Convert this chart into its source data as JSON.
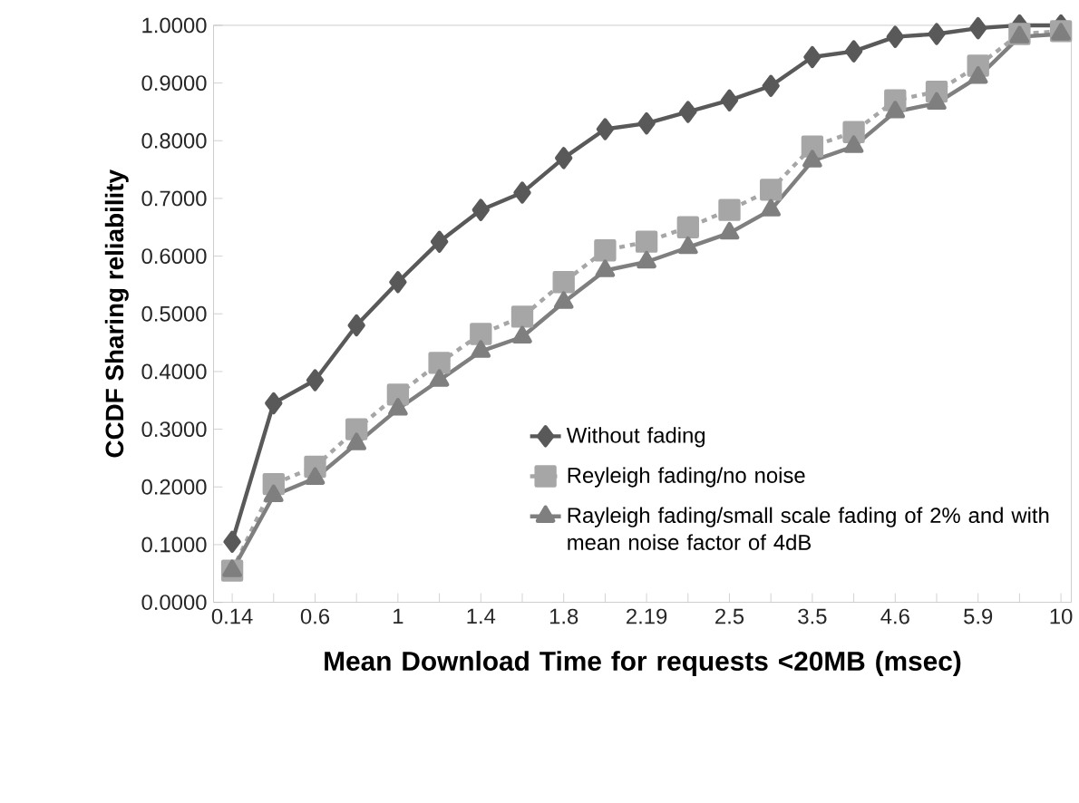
{
  "chart_data": {
    "type": "line",
    "xlabel": "Mean Download Time for requests <20MB (msec)",
    "ylabel": "CCDF Sharing reliability",
    "categories": [
      "0.14",
      null,
      "0.6",
      null,
      "1",
      null,
      "1.4",
      null,
      "1.8",
      null,
      "2.19",
      null,
      "2.5",
      null,
      "3.5",
      null,
      "4.6",
      null,
      "5.9",
      null,
      "10"
    ],
    "series": [
      {
        "name": "Without fading",
        "color": "#595959",
        "marker": "diamond",
        "line_style": "solid",
        "values": [
          0.105,
          0.345,
          0.385,
          0.48,
          0.555,
          0.625,
          0.68,
          0.71,
          0.77,
          0.82,
          0.83,
          0.85,
          0.87,
          0.895,
          0.945,
          0.955,
          0.98,
          0.985,
          0.995,
          1.0,
          1.0
        ]
      },
      {
        "name": "Reyleigh fading/no noise",
        "color": "#a6a6a6",
        "marker": "square",
        "line_style": "dashed",
        "values": [
          0.055,
          0.205,
          0.235,
          0.3,
          0.36,
          0.415,
          0.465,
          0.495,
          0.555,
          0.61,
          0.625,
          0.65,
          0.68,
          0.715,
          0.79,
          0.815,
          0.87,
          0.885,
          0.93,
          0.985,
          0.99
        ]
      },
      {
        "name": "Rayleigh fading/small scale fading of 2% and with mean noise factor of 4dB",
        "color": "#7f7f7f",
        "marker": "triangle",
        "line_style": "solid",
        "values": [
          0.055,
          0.185,
          0.215,
          0.275,
          0.335,
          0.385,
          0.435,
          0.46,
          0.52,
          0.575,
          0.59,
          0.615,
          0.64,
          0.68,
          0.765,
          0.79,
          0.85,
          0.865,
          0.91,
          0.98,
          0.985
        ]
      }
    ],
    "ylim": [
      0,
      1
    ],
    "yticks": [
      {
        "value": 0,
        "label": "0.0000"
      },
      {
        "value": 0.1,
        "label": "0.1000"
      },
      {
        "value": 0.2,
        "label": "0.2000"
      },
      {
        "value": 0.3,
        "label": "0.3000"
      },
      {
        "value": 0.4,
        "label": "0.4000"
      },
      {
        "value": 0.5,
        "label": "0.5000"
      },
      {
        "value": 0.6,
        "label": "0.6000"
      },
      {
        "value": 0.7,
        "label": "0.7000"
      },
      {
        "value": 0.8,
        "label": "0.8000"
      },
      {
        "value": 0.9,
        "label": "0.9000"
      },
      {
        "value": 1,
        "label": "1.0000"
      }
    ],
    "grid": false,
    "legend": "right"
  }
}
